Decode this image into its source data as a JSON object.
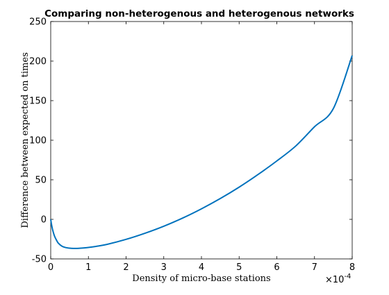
{
  "chart_data": {
    "type": "line",
    "title": "Comparing non-heterogenous and heterogenous networks",
    "xlabel": "Density of micro-base stations",
    "ylabel": "Difference between expected on times",
    "x_multiplier_label": "×10",
    "x_multiplier_exponent": "-4",
    "xlim": [
      0,
      8
    ],
    "ylim": [
      -50,
      250
    ],
    "x_ticks": [
      "0",
      "1",
      "2",
      "3",
      "4",
      "5",
      "6",
      "7",
      "8"
    ],
    "y_ticks": [
      "-50",
      "0",
      "50",
      "100",
      "150",
      "200",
      "250"
    ],
    "grid": false,
    "series": [
      {
        "color": "#0072bd",
        "x": [
          0,
          0.02,
          0.05,
          0.1,
          0.15,
          0.2,
          0.3,
          0.4,
          0.5,
          0.6,
          0.7,
          0.8,
          1.0,
          1.2,
          1.5,
          2.0,
          2.5,
          3.0,
          3.5,
          4.0,
          4.5,
          5.0,
          5.5,
          6.0,
          6.5,
          7.0,
          7.5,
          8.0
        ],
        "y": [
          0,
          -6,
          -13,
          -21,
          -26,
          -30,
          -34,
          -35.7,
          -36.4,
          -36.7,
          -36.7,
          -36.4,
          -35.5,
          -34.2,
          -31.6,
          -25.3,
          -17.6,
          -8.7,
          1.6,
          13.3,
          26.3,
          40.7,
          56.6,
          73.8,
          92.6,
          117.0,
          140.0,
          207
        ]
      }
    ]
  }
}
